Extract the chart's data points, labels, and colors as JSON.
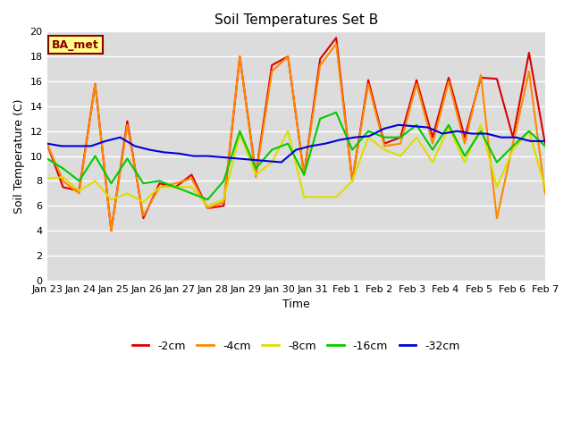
{
  "title": "Soil Temperatures Set B",
  "xlabel": "Time",
  "ylabel": "Soil Temperature (C)",
  "ylim": [
    0,
    20
  ],
  "xlim": [
    0,
    15
  ],
  "plot_bg": "#dcdcdc",
  "fig_bg": "#ffffff",
  "annotation_text": "BA_met",
  "annotation_bg": "#ffff88",
  "annotation_border": "#8B0000",
  "line_colors": {
    "-2cm": "#dd0000",
    "-4cm": "#ff8800",
    "-8cm": "#dddd00",
    "-16cm": "#00cc00",
    "-32cm": "#0000dd"
  },
  "x_labels": [
    "Jan 23",
    "Jan 24",
    "Jan 25",
    "Jan 26",
    "Jan 27",
    "Jan 28",
    "Jan 29",
    "Jan 30",
    "Jan 31",
    "Feb 1",
    "Feb 2",
    "Feb 3",
    "Feb 4",
    "Feb 5",
    "Feb 6",
    "Feb 7"
  ],
  "series": {
    "-2cm": [
      11.0,
      7.5,
      7.2,
      15.8,
      4.0,
      12.8,
      5.0,
      7.8,
      7.5,
      8.5,
      5.8,
      6.0,
      18.0,
      8.5,
      17.3,
      18.0,
      8.5,
      17.8,
      19.5,
      8.0,
      16.1,
      11.0,
      11.5,
      16.1,
      11.5,
      16.3,
      11.5,
      16.3,
      16.2,
      11.5,
      18.3,
      11.0
    ],
    "-4cm": [
      11.0,
      8.0,
      7.0,
      15.8,
      4.0,
      12.5,
      5.2,
      7.5,
      7.8,
      8.2,
      5.8,
      6.3,
      18.0,
      8.3,
      16.8,
      18.0,
      8.5,
      17.3,
      19.0,
      8.0,
      15.8,
      10.8,
      11.0,
      15.8,
      11.0,
      16.0,
      11.0,
      16.5,
      5.0,
      11.0,
      16.8,
      7.0
    ],
    "-8cm": [
      8.2,
      8.3,
      7.2,
      8.0,
      6.5,
      7.0,
      6.3,
      7.5,
      7.5,
      7.5,
      6.0,
      6.5,
      11.8,
      8.5,
      9.5,
      12.0,
      6.7,
      6.7,
      6.7,
      8.0,
      11.5,
      10.5,
      10.0,
      11.5,
      9.5,
      12.3,
      9.5,
      12.5,
      7.5,
      10.5,
      12.0,
      7.5
    ],
    "-16cm": [
      9.8,
      9.0,
      8.0,
      10.0,
      7.8,
      9.8,
      7.8,
      8.0,
      7.5,
      7.0,
      6.5,
      8.0,
      12.0,
      9.0,
      10.5,
      11.0,
      8.5,
      13.0,
      13.5,
      10.5,
      12.0,
      11.5,
      11.5,
      12.5,
      10.5,
      12.5,
      10.0,
      12.0,
      9.5,
      10.8,
      12.0,
      10.8
    ],
    "-32cm": [
      11.0,
      10.8,
      10.8,
      10.8,
      11.2,
      11.5,
      10.8,
      10.5,
      10.3,
      10.2,
      10.0,
      10.0,
      9.9,
      9.8,
      9.7,
      9.6,
      9.5,
      10.5,
      10.8,
      11.0,
      11.3,
      11.5,
      11.6,
      12.2,
      12.5,
      12.4,
      12.3,
      11.8,
      12.0,
      11.8,
      11.8,
      11.5,
      11.5,
      11.2,
      11.2
    ]
  },
  "n_ticks": 16,
  "grid_color": "#c8c8c8",
  "grid_lw": 1.0,
  "line_width": 1.5,
  "tick_fontsize": 8,
  "label_fontsize": 9,
  "title_fontsize": 11,
  "legend_fontsize": 9
}
